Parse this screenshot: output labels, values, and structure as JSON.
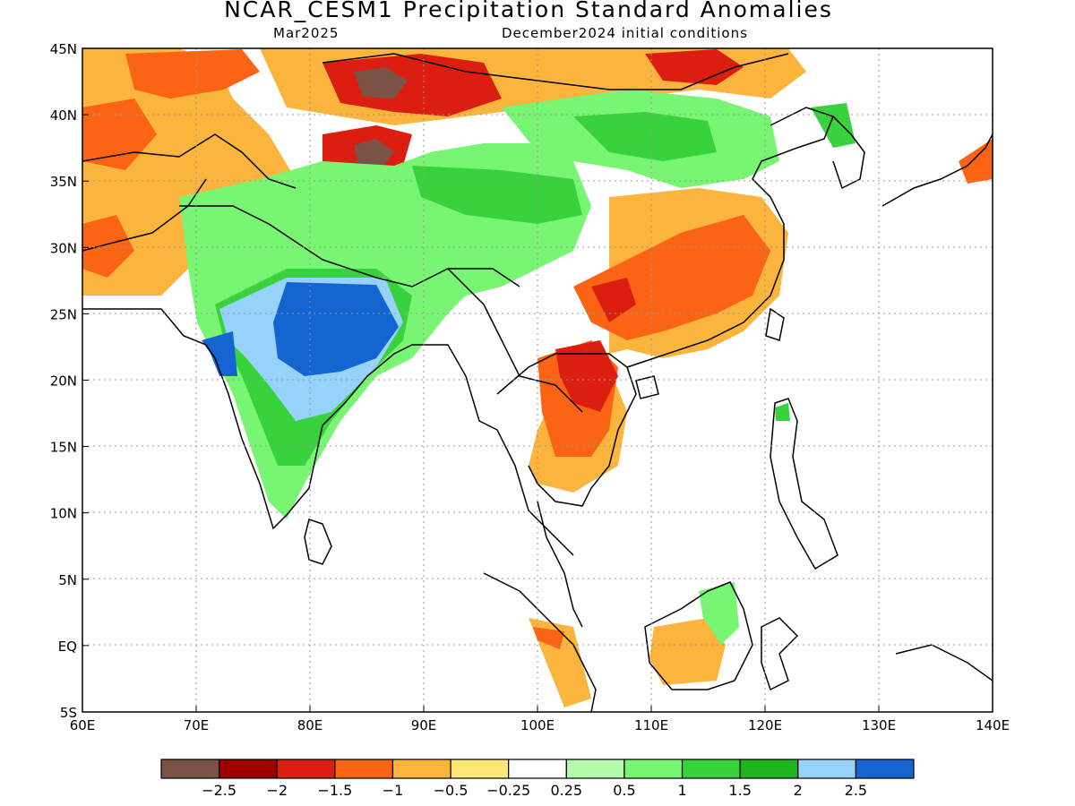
{
  "title": "NCAR_CESM1 Precipitation Standard Anomalies",
  "valid_month": "Mar2025",
  "init_conditions": "December2024 initial conditions",
  "map": {
    "lon_labels": [
      "60E",
      "70E",
      "80E",
      "90E",
      "100E",
      "110E",
      "120E",
      "130E",
      "140E"
    ],
    "lat_labels": [
      "45N",
      "40N",
      "35N",
      "30N",
      "25N",
      "20N",
      "15N",
      "10N",
      "5N",
      "EQ",
      "5S"
    ],
    "extent": {
      "lon_min": 60,
      "lon_max": 140,
      "lat_min": -5,
      "lat_max": 45
    },
    "grid": "dotted"
  },
  "colorbar": {
    "colors": [
      "#7a5246",
      "#a00000",
      "#dc1e10",
      "#fa6414",
      "#fbb43c",
      "#ffe678",
      "#ffffff",
      "#b4faaa",
      "#78f573",
      "#37d23c",
      "#1eb41e",
      "#96d2fa",
      "#1464d2"
    ],
    "labels": [
      "−2.5",
      "−2",
      "−1.5",
      "−1",
      "−0.5",
      "−0.25",
      "0.25",
      "0.5",
      "1",
      "1.5",
      "2",
      "2.5"
    ]
  },
  "colors": {
    "land_outline": "#000000",
    "ocean": "#ffffff",
    "grid": "#999999"
  }
}
